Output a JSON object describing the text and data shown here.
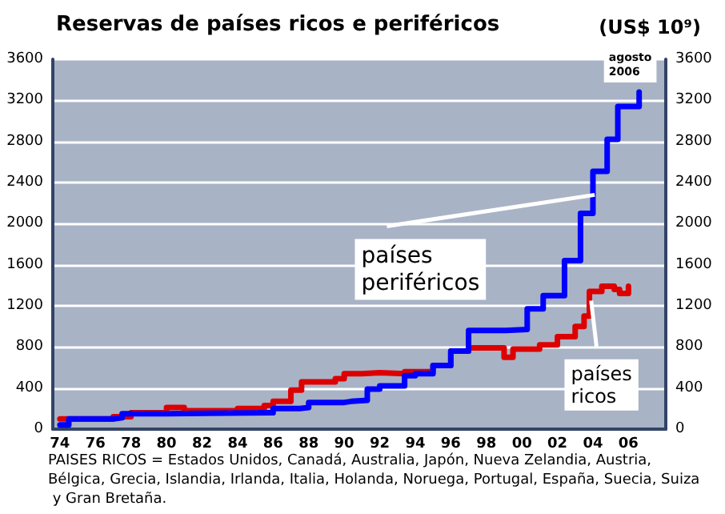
{
  "chart_data": {
    "type": "step",
    "title": "Reservas de países ricos e periféricos",
    "y2label": "(US$ 10⁹)",
    "series": [
      {
        "name": "países periféricos",
        "color": "#0000ff",
        "x": [
          1974,
          1974.5,
          1977,
          1977.5,
          1980,
          1985.8,
          1986,
          1987.5,
          1988,
          1990,
          1990.4,
          1991.3,
          1992,
          1993.4,
          1994,
          1995,
          1996,
          1997,
          1999.1,
          2000.3,
          2001.2,
          2002.4,
          2003.3,
          2003.8,
          2004,
          2004.8,
          2005.4,
          2006.6
        ],
        "values": [
          40,
          100,
          110,
          150,
          160,
          160,
          200,
          210,
          260,
          270,
          280,
          390,
          420,
          520,
          540,
          620,
          760,
          960,
          970,
          1170,
          1300,
          1640,
          2100,
          2100,
          2510,
          2820,
          3140,
          3280
        ]
      },
      {
        "name": "países ricos",
        "color": "#dd0000",
        "x": [
          1974,
          1975,
          1977,
          1978,
          1980,
          1981,
          1984,
          1985.5,
          1986,
          1987,
          1987.6,
          1989.5,
          1990,
          1991,
          1992,
          1993.4,
          1995,
          1996,
          1997,
          1998.8,
          1999,
          1999.5,
          2001,
          2002,
          2003,
          2003.5,
          2003.8,
          2004.5,
          2005.2,
          2005.5,
          2006
        ],
        "values": [
          100,
          100,
          120,
          160,
          210,
          180,
          200,
          230,
          270,
          380,
          460,
          490,
          540,
          550,
          540,
          560,
          620,
          760,
          790,
          790,
          700,
          780,
          820,
          900,
          1000,
          1100,
          1340,
          1390,
          1360,
          1320,
          1390
        ]
      }
    ],
    "xlim": [
      1973.6,
      2008.1
    ],
    "xticks": [
      {
        "value": 1974,
        "label": "74"
      },
      {
        "value": 1976,
        "label": "76"
      },
      {
        "value": 1978,
        "label": "78"
      },
      {
        "value": 1980,
        "label": "80"
      },
      {
        "value": 1982,
        "label": "82"
      },
      {
        "value": 1984,
        "label": "84"
      },
      {
        "value": 1986,
        "label": "86"
      },
      {
        "value": 1988,
        "label": "88"
      },
      {
        "value": 1990,
        "label": "90"
      },
      {
        "value": 1992,
        "label": "92"
      },
      {
        "value": 1994,
        "label": "94"
      },
      {
        "value": 1996,
        "label": "96"
      },
      {
        "value": 1998,
        "label": "98"
      },
      {
        "value": 2000,
        "label": "00"
      },
      {
        "value": 2002,
        "label": "02"
      },
      {
        "value": 2004,
        "label": "04"
      },
      {
        "value": 2006,
        "label": "06"
      }
    ],
    "ylim": [
      0,
      3600
    ],
    "yticks": [
      0,
      400,
      800,
      1200,
      1600,
      2000,
      2400,
      2800,
      3200,
      3600
    ],
    "y2lim": [
      0,
      3600
    ],
    "y2ticks": [
      0,
      400,
      800,
      1200,
      1600,
      2000,
      2400,
      2800,
      3200,
      3600
    ],
    "grid": "y",
    "legend": false,
    "annotations": [
      {
        "text": "agosto 2006",
        "x": 2006.6,
        "y": 3280
      },
      "PAISES RICOS = Estados Unidos, Canadá, Australia, Japón, Nueva Zelandia, Austria, Bélgica, Grecia, Islandia, Irlanda, Italia, Holanda, Noruega, Portugal, España, Suecia, Suiza y Gran Bretaña."
    ]
  }
}
